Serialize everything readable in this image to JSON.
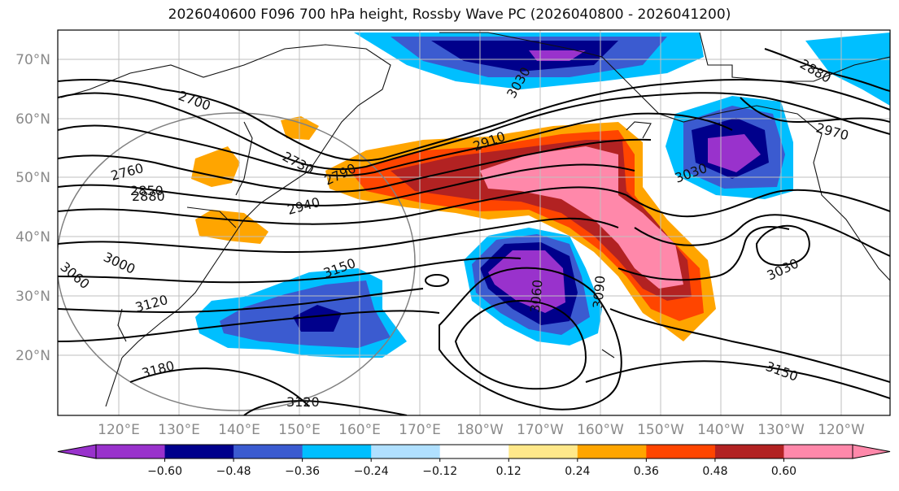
{
  "title": "2026040600 F096 700 hPa height, Rossby Wave PC (2026040800 - 2026041200)",
  "lat_labels": [
    "70°N",
    "60°N",
    "50°N",
    "40°N",
    "30°N",
    "20°N"
  ],
  "lon_labels": [
    "120°E",
    "130°E",
    "140°E",
    "150°E",
    "160°E",
    "170°E",
    "180°W",
    "170°W",
    "160°W",
    "150°W",
    "140°W",
    "130°W",
    "120°W"
  ],
  "contour_labels": [
    "2700",
    "2730",
    "2760",
    "2790",
    "2850",
    "2880",
    "2910",
    "2940",
    "2970",
    "3000",
    "3030",
    "3060",
    "3090",
    "3120",
    "3150",
    "3180",
    "3120",
    "3060",
    "3030",
    "3150",
    "2880",
    "3030"
  ],
  "colorbar": {
    "colors": [
      "#9932cc",
      "#00008b",
      "#3b5bd0",
      "#00bfff",
      "#b0e0ff",
      "#ffffff",
      "#ffe88a",
      "#ffa500",
      "#ff4500",
      "#b22222",
      "#ff88aa"
    ],
    "ticks": [
      "−0.60",
      "−0.48",
      "−0.36",
      "−0.24",
      "−0.12",
      "0.12",
      "0.24",
      "0.36",
      "0.48",
      "0.60"
    ]
  }
}
